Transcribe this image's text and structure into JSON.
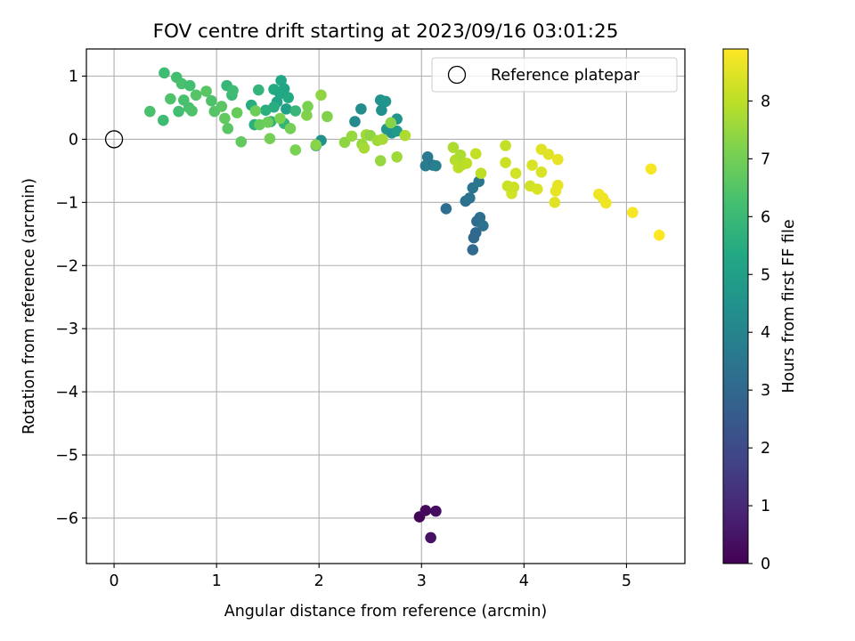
{
  "chart_data": {
    "type": "scatter",
    "title": "FOV centre drift starting at 2023/09/16 03:01:25",
    "xlabel": "Angular distance from reference (arcmin)",
    "ylabel": "Rotation from reference (arcmin)",
    "xlim": [
      -0.27,
      5.57
    ],
    "ylim": [
      -6.72,
      1.43
    ],
    "xticks": [
      0,
      1,
      2,
      3,
      4,
      5
    ],
    "yticks": [
      1,
      0,
      -1,
      -2,
      -3,
      -4,
      -5,
      -6
    ],
    "xtick_labels": [
      "0",
      "1",
      "2",
      "3",
      "4",
      "5"
    ],
    "ytick_labels": [
      "1",
      "0",
      "−1",
      "−2",
      "−3",
      "−4",
      "−5",
      "−6"
    ],
    "grid": true,
    "legend": {
      "position": "top-right",
      "label": "Reference platepar"
    },
    "reference_point": {
      "x": 0,
      "y": 0
    },
    "colorbar": {
      "label": "Hours from first FF file",
      "colormap": "viridis",
      "range": [
        0,
        8.9
      ],
      "ticks": [
        0,
        1,
        2,
        3,
        4,
        5,
        6,
        7,
        8
      ],
      "tick_labels": [
        "0",
        "1",
        "2",
        "3",
        "4",
        "5",
        "6",
        "7",
        "8"
      ]
    },
    "points": [
      {
        "x": 2.98,
        "y": -5.98,
        "c": 0.1
      },
      {
        "x": 3.04,
        "y": -5.88,
        "c": 0.2
      },
      {
        "x": 3.14,
        "y": -5.89,
        "c": 0.3
      },
      {
        "x": 3.09,
        "y": -6.31,
        "c": 0.4
      },
      {
        "x": 3.24,
        "y": -1.1,
        "c": 3.2
      },
      {
        "x": 3.43,
        "y": -0.98,
        "c": 3.3
      },
      {
        "x": 3.47,
        "y": -0.93,
        "c": 3.4
      },
      {
        "x": 3.5,
        "y": -0.77,
        "c": 3.5
      },
      {
        "x": 3.56,
        "y": -0.67,
        "c": 3.5
      },
      {
        "x": 3.54,
        "y": -1.3,
        "c": 3.1
      },
      {
        "x": 3.57,
        "y": -1.24,
        "c": 3.2
      },
      {
        "x": 3.6,
        "y": -1.37,
        "c": 3.3
      },
      {
        "x": 3.53,
        "y": -1.48,
        "c": 3.0
      },
      {
        "x": 3.51,
        "y": -1.56,
        "c": 3.0
      },
      {
        "x": 3.5,
        "y": -1.75,
        "c": 3.1
      },
      {
        "x": 3.06,
        "y": -0.28,
        "c": 3.6
      },
      {
        "x": 3.04,
        "y": -0.42,
        "c": 3.7
      },
      {
        "x": 3.11,
        "y": -0.41,
        "c": 3.6
      },
      {
        "x": 3.14,
        "y": -0.42,
        "c": 3.8
      },
      {
        "x": 2.35,
        "y": 0.28,
        "c": 4.2
      },
      {
        "x": 2.41,
        "y": 0.48,
        "c": 4.3
      },
      {
        "x": 2.6,
        "y": 0.62,
        "c": 4.5
      },
      {
        "x": 2.65,
        "y": 0.6,
        "c": 4.6
      },
      {
        "x": 2.61,
        "y": 0.46,
        "c": 4.4
      },
      {
        "x": 2.66,
        "y": 0.16,
        "c": 4.7
      },
      {
        "x": 2.71,
        "y": 0.1,
        "c": 4.5
      },
      {
        "x": 2.76,
        "y": 0.13,
        "c": 4.8
      },
      {
        "x": 2.76,
        "y": 0.32,
        "c": 4.6
      },
      {
        "x": 1.97,
        "y": -0.1,
        "c": 4.3
      },
      {
        "x": 2.02,
        "y": -0.02,
        "c": 4.4
      },
      {
        "x": 1.68,
        "y": 0.48,
        "c": 5.0
      },
      {
        "x": 1.59,
        "y": 0.59,
        "c": 5.1
      },
      {
        "x": 1.63,
        "y": 0.93,
        "c": 5.3
      },
      {
        "x": 1.66,
        "y": 0.8,
        "c": 5.2
      },
      {
        "x": 1.7,
        "y": 0.66,
        "c": 5.4
      },
      {
        "x": 1.56,
        "y": 0.51,
        "c": 5.5
      },
      {
        "x": 1.48,
        "y": 0.46,
        "c": 5.6
      },
      {
        "x": 1.53,
        "y": 0.28,
        "c": 5.7
      },
      {
        "x": 1.66,
        "y": 0.25,
        "c": 5.8
      },
      {
        "x": 1.77,
        "y": 0.45,
        "c": 5.9
      },
      {
        "x": 1.37,
        "y": 0.23,
        "c": 5.6
      },
      {
        "x": 1.34,
        "y": 0.54,
        "c": 5.5
      },
      {
        "x": 1.41,
        "y": 0.78,
        "c": 5.8
      },
      {
        "x": 1.1,
        "y": 0.85,
        "c": 5.9
      },
      {
        "x": 1.15,
        "y": 0.7,
        "c": 6.0
      },
      {
        "x": 1.16,
        "y": 0.77,
        "c": 6.1
      },
      {
        "x": 1.56,
        "y": 0.79,
        "c": 5.4
      },
      {
        "x": 1.62,
        "y": 0.72,
        "c": 5.3
      },
      {
        "x": 0.49,
        "y": 1.05,
        "c": 6.1
      },
      {
        "x": 0.61,
        "y": 0.98,
        "c": 6.2
      },
      {
        "x": 0.66,
        "y": 0.88,
        "c": 6.3
      },
      {
        "x": 0.74,
        "y": 0.85,
        "c": 6.2
      },
      {
        "x": 0.55,
        "y": 0.64,
        "c": 6.4
      },
      {
        "x": 0.68,
        "y": 0.62,
        "c": 6.3
      },
      {
        "x": 0.8,
        "y": 0.7,
        "c": 6.5
      },
      {
        "x": 0.9,
        "y": 0.76,
        "c": 6.6
      },
      {
        "x": 0.95,
        "y": 0.61,
        "c": 6.4
      },
      {
        "x": 0.63,
        "y": 0.44,
        "c": 6.2
      },
      {
        "x": 0.73,
        "y": 0.5,
        "c": 6.3
      },
      {
        "x": 0.76,
        "y": 0.45,
        "c": 6.4
      },
      {
        "x": 0.35,
        "y": 0.44,
        "c": 6.3
      },
      {
        "x": 0.48,
        "y": 0.3,
        "c": 6.1
      },
      {
        "x": 0.98,
        "y": 0.44,
        "c": 6.5
      },
      {
        "x": 1.05,
        "y": 0.52,
        "c": 6.6
      },
      {
        "x": 1.08,
        "y": 0.33,
        "c": 6.7
      },
      {
        "x": 1.11,
        "y": 0.17,
        "c": 6.6
      },
      {
        "x": 1.2,
        "y": 0.42,
        "c": 6.8
      },
      {
        "x": 1.24,
        "y": -0.04,
        "c": 6.7
      },
      {
        "x": 1.38,
        "y": 0.45,
        "c": 6.9
      },
      {
        "x": 1.42,
        "y": 0.23,
        "c": 6.8
      },
      {
        "x": 1.5,
        "y": 0.27,
        "c": 6.9
      },
      {
        "x": 1.52,
        "y": 0.01,
        "c": 7.0
      },
      {
        "x": 1.62,
        "y": 0.33,
        "c": 7.1
      },
      {
        "x": 1.72,
        "y": 0.17,
        "c": 7.0
      },
      {
        "x": 1.77,
        "y": -0.17,
        "c": 7.1
      },
      {
        "x": 1.88,
        "y": 0.38,
        "c": 7.2
      },
      {
        "x": 1.89,
        "y": 0.52,
        "c": 7.1
      },
      {
        "x": 1.97,
        "y": -0.09,
        "c": 7.3
      },
      {
        "x": 2.02,
        "y": 0.7,
        "c": 7.4
      },
      {
        "x": 2.08,
        "y": 0.36,
        "c": 7.2
      },
      {
        "x": 2.25,
        "y": -0.05,
        "c": 7.4
      },
      {
        "x": 2.32,
        "y": 0.05,
        "c": 7.5
      },
      {
        "x": 2.42,
        "y": -0.08,
        "c": 7.5
      },
      {
        "x": 2.46,
        "y": 0.07,
        "c": 7.6
      },
      {
        "x": 2.5,
        "y": 0.06,
        "c": 7.4
      },
      {
        "x": 2.44,
        "y": -0.14,
        "c": 7.7
      },
      {
        "x": 2.57,
        "y": -0.02,
        "c": 7.6
      },
      {
        "x": 2.6,
        "y": -0.34,
        "c": 7.5
      },
      {
        "x": 2.62,
        "y": 0.0,
        "c": 7.7
      },
      {
        "x": 2.7,
        "y": 0.26,
        "c": 7.3
      },
      {
        "x": 2.76,
        "y": -0.28,
        "c": 7.6
      },
      {
        "x": 2.84,
        "y": 0.06,
        "c": 7.8
      },
      {
        "x": 3.31,
        "y": -0.13,
        "c": 7.8
      },
      {
        "x": 3.33,
        "y": -0.33,
        "c": 7.9
      },
      {
        "x": 3.36,
        "y": -0.45,
        "c": 8.0
      },
      {
        "x": 3.4,
        "y": -0.4,
        "c": 7.9
      },
      {
        "x": 3.44,
        "y": -0.38,
        "c": 8.0
      },
      {
        "x": 3.38,
        "y": -0.25,
        "c": 7.8
      },
      {
        "x": 3.53,
        "y": -0.23,
        "c": 8.1
      },
      {
        "x": 3.58,
        "y": -0.54,
        "c": 8.0
      },
      {
        "x": 3.82,
        "y": -0.1,
        "c": 8.1
      },
      {
        "x": 3.82,
        "y": -0.37,
        "c": 8.2
      },
      {
        "x": 3.84,
        "y": -0.74,
        "c": 8.2
      },
      {
        "x": 3.88,
        "y": -0.86,
        "c": 8.3
      },
      {
        "x": 3.9,
        "y": -0.76,
        "c": 8.2
      },
      {
        "x": 3.92,
        "y": -0.54,
        "c": 8.3
      },
      {
        "x": 4.06,
        "y": -0.74,
        "c": 8.3
      },
      {
        "x": 4.08,
        "y": -0.41,
        "c": 8.4
      },
      {
        "x": 4.13,
        "y": -0.79,
        "c": 8.4
      },
      {
        "x": 4.17,
        "y": -0.52,
        "c": 8.4
      },
      {
        "x": 4.17,
        "y": -0.16,
        "c": 8.5
      },
      {
        "x": 4.24,
        "y": -0.24,
        "c": 8.5
      },
      {
        "x": 4.3,
        "y": -1.0,
        "c": 8.5
      },
      {
        "x": 4.31,
        "y": -0.82,
        "c": 8.6
      },
      {
        "x": 4.33,
        "y": -0.73,
        "c": 8.6
      },
      {
        "x": 4.33,
        "y": -0.32,
        "c": 8.6
      },
      {
        "x": 4.73,
        "y": -0.87,
        "c": 8.7
      },
      {
        "x": 4.77,
        "y": -0.93,
        "c": 8.7
      },
      {
        "x": 4.8,
        "y": -1.01,
        "c": 8.7
      },
      {
        "x": 5.06,
        "y": -1.16,
        "c": 8.8
      },
      {
        "x": 5.24,
        "y": -0.47,
        "c": 8.8
      },
      {
        "x": 5.32,
        "y": -1.52,
        "c": 8.9
      }
    ]
  }
}
